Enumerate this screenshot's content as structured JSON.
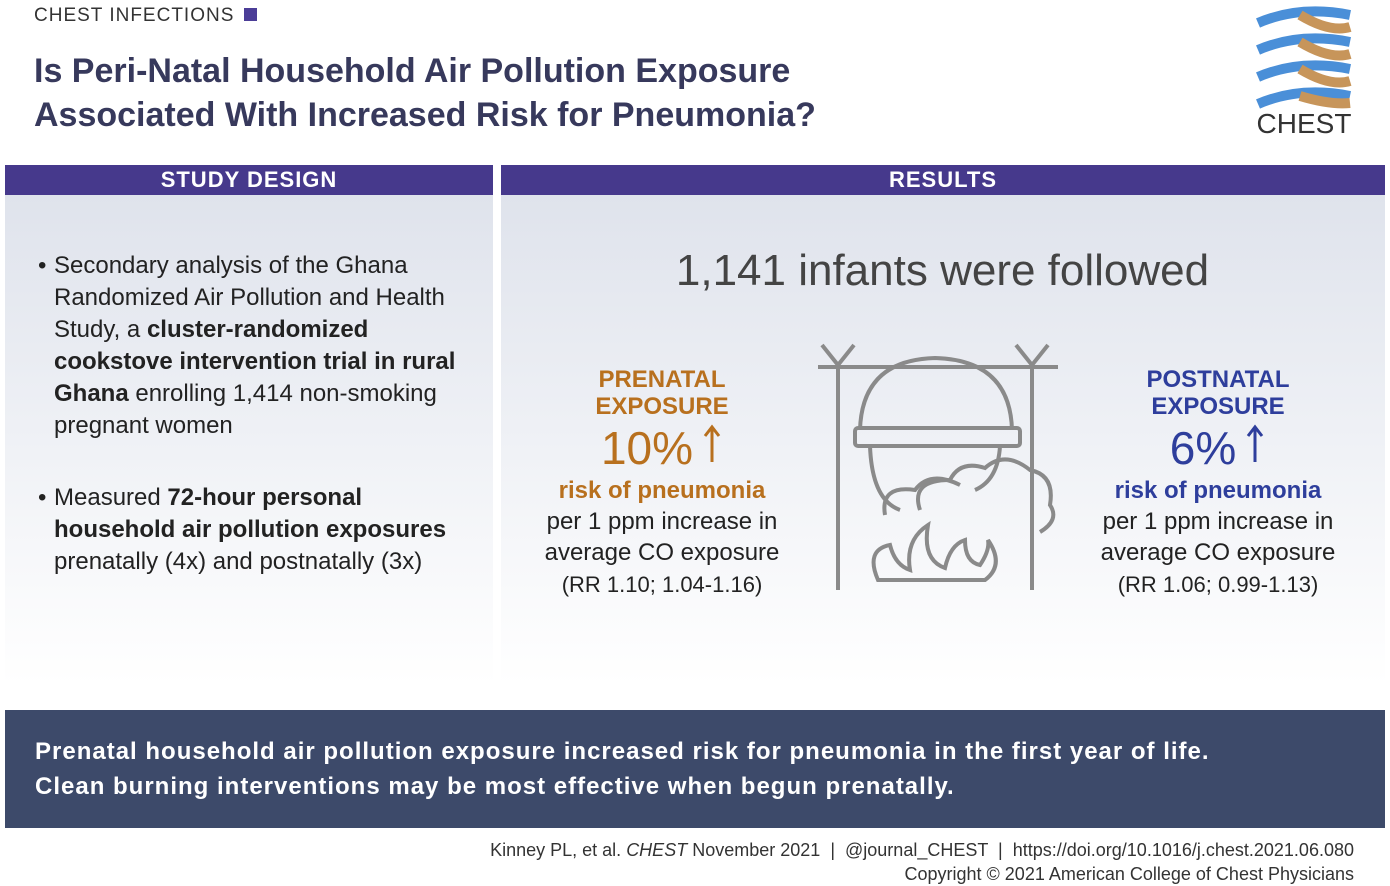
{
  "header": {
    "category": "CHEST INFECTIONS",
    "title_lines": [
      "Is Peri-Natal Household Air Pollution Exposure",
      "Associated With Increased Risk for Pneumonia?"
    ],
    "logo": "CHEST"
  },
  "study_design": {
    "heading": "STUDY DESIGN",
    "bullets": [
      {
        "segments": [
          {
            "text": "Secondary analysis of the Ghana Randomized Air Pollution and Health Study, a ",
            "bold": false
          },
          {
            "text": "cluster-randomized cookstove intervention trial in rural Ghana",
            "bold": true
          },
          {
            "text": " enrolling 1,414 non-smoking pregnant women",
            "bold": false
          }
        ]
      },
      {
        "segments": [
          {
            "text": "Measured ",
            "bold": false
          },
          {
            "text": "72-hour personal household air pollution exposures",
            "bold": true
          },
          {
            "text": " prenatally (4x) and postnatally (3x)",
            "bold": false
          }
        ]
      }
    ]
  },
  "results": {
    "heading": "RESULTS",
    "headline": "1,141 infants were followed",
    "panels": [
      {
        "label_lines": [
          "PRENATAL",
          "EXPOSURE"
        ],
        "value": "10%",
        "color": "#b8701e",
        "risk": "risk of pneumonia",
        "detail_lines": [
          "per 1 ppm increase in",
          "average CO exposure"
        ],
        "ci": "(RR 1.10; 1.04-1.16)"
      },
      {
        "label_lines": [
          "POSTNATAL",
          "EXPOSURE"
        ],
        "value": "6%",
        "color": "#2e3e9c",
        "risk": "risk of pneumonia",
        "detail_lines": [
          "per 1 ppm increase in",
          "average CO exposure"
        ],
        "ci": "(RR 1.06; 0.99-1.13)"
      }
    ]
  },
  "conclusion": {
    "lines": [
      "Prenatal household air pollution exposure increased risk for pneumonia in the first year of life.",
      "Clean burning interventions may be most effective when begun prenatally."
    ]
  },
  "footer": {
    "citation_author": "Kinney PL, et al.",
    "citation_journal": "CHEST",
    "citation_date": "November 2021",
    "separator": "|",
    "handle": "@journal_CHEST",
    "doi": "https://doi.org/10.1016/j.chest.2021.06.080",
    "copyright": "Copyright © 2021 American College of Chest Physicians"
  }
}
